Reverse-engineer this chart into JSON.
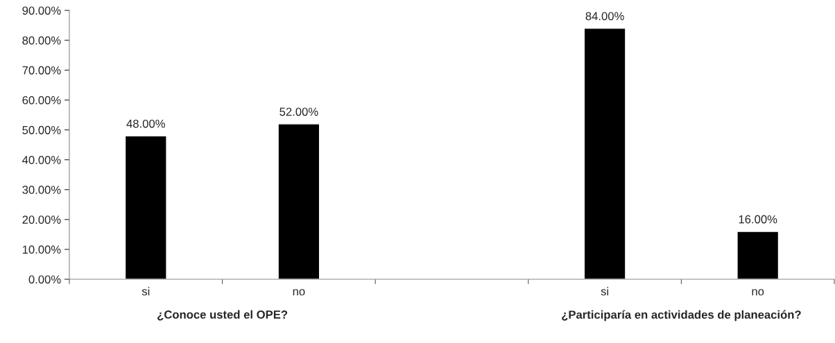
{
  "chart_data": {
    "type": "bar",
    "categories": [
      "si",
      "no",
      null,
      "si",
      "no"
    ],
    "series": [
      {
        "color": "#000000",
        "values": [
          48,
          52,
          null,
          84,
          16
        ]
      }
    ],
    "value_labels": [
      "48.00%",
      "52.00%",
      null,
      "84.00%",
      "16.00%"
    ],
    "ylim": [
      0,
      90
    ],
    "yticks": [
      {
        "value": 0,
        "label": "0.00%"
      },
      {
        "value": 10,
        "label": "10.00%"
      },
      {
        "value": 20,
        "label": "20.00%"
      },
      {
        "value": 30,
        "label": "30.00%"
      },
      {
        "value": 40,
        "label": "40.00%"
      },
      {
        "value": 50,
        "label": "50.00%"
      },
      {
        "value": 60,
        "label": "60.00%"
      },
      {
        "value": 70,
        "label": "70.00%"
      },
      {
        "value": 80,
        "label": "80.00%"
      },
      {
        "value": 90,
        "label": "90.00%"
      }
    ],
    "annotations": [
      "¿Conoce usted el OPE?",
      "¿Participaría en actividades de planeación?"
    ],
    "grid": false,
    "legend": false
  }
}
